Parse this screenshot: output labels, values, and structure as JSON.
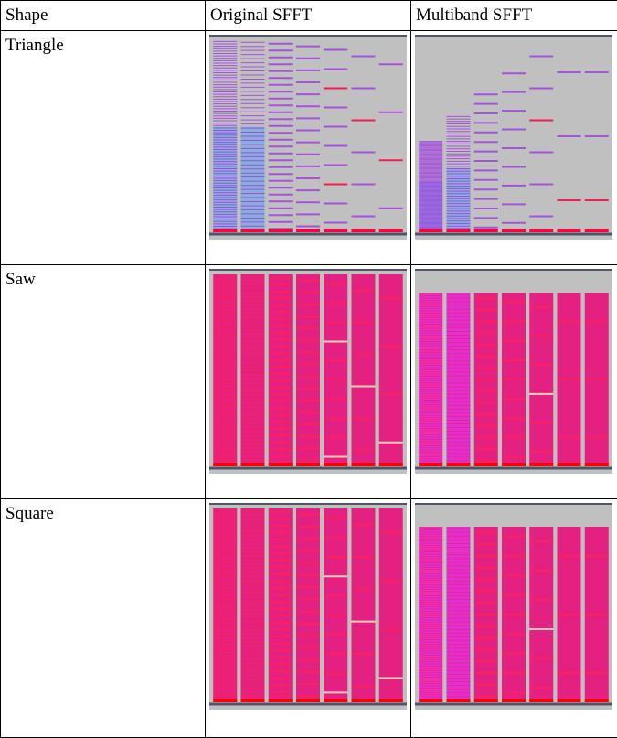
{
  "table": {
    "headers": [
      "Shape",
      "Original SFFT",
      "Multiband SFFT"
    ],
    "rows": [
      {
        "shape": "Triangle",
        "palette": "blue"
      },
      {
        "shape": "Saw",
        "palette": "pink"
      },
      {
        "shape": "Square",
        "palette": "pink"
      }
    ]
  },
  "colors": {
    "background": "#c0c0c0",
    "gap": "#c8c8c8",
    "axis": "#50566a",
    "triangle_base": "#5aa0f0",
    "triangle_band": "#a040e0",
    "triangle_peak": "#ff0040",
    "pink_fill": "#e8107a",
    "pink_line": "#ff2060",
    "red": "#ff0000",
    "magenta": "#e020e0",
    "white_line": "#fff0c0"
  }
}
